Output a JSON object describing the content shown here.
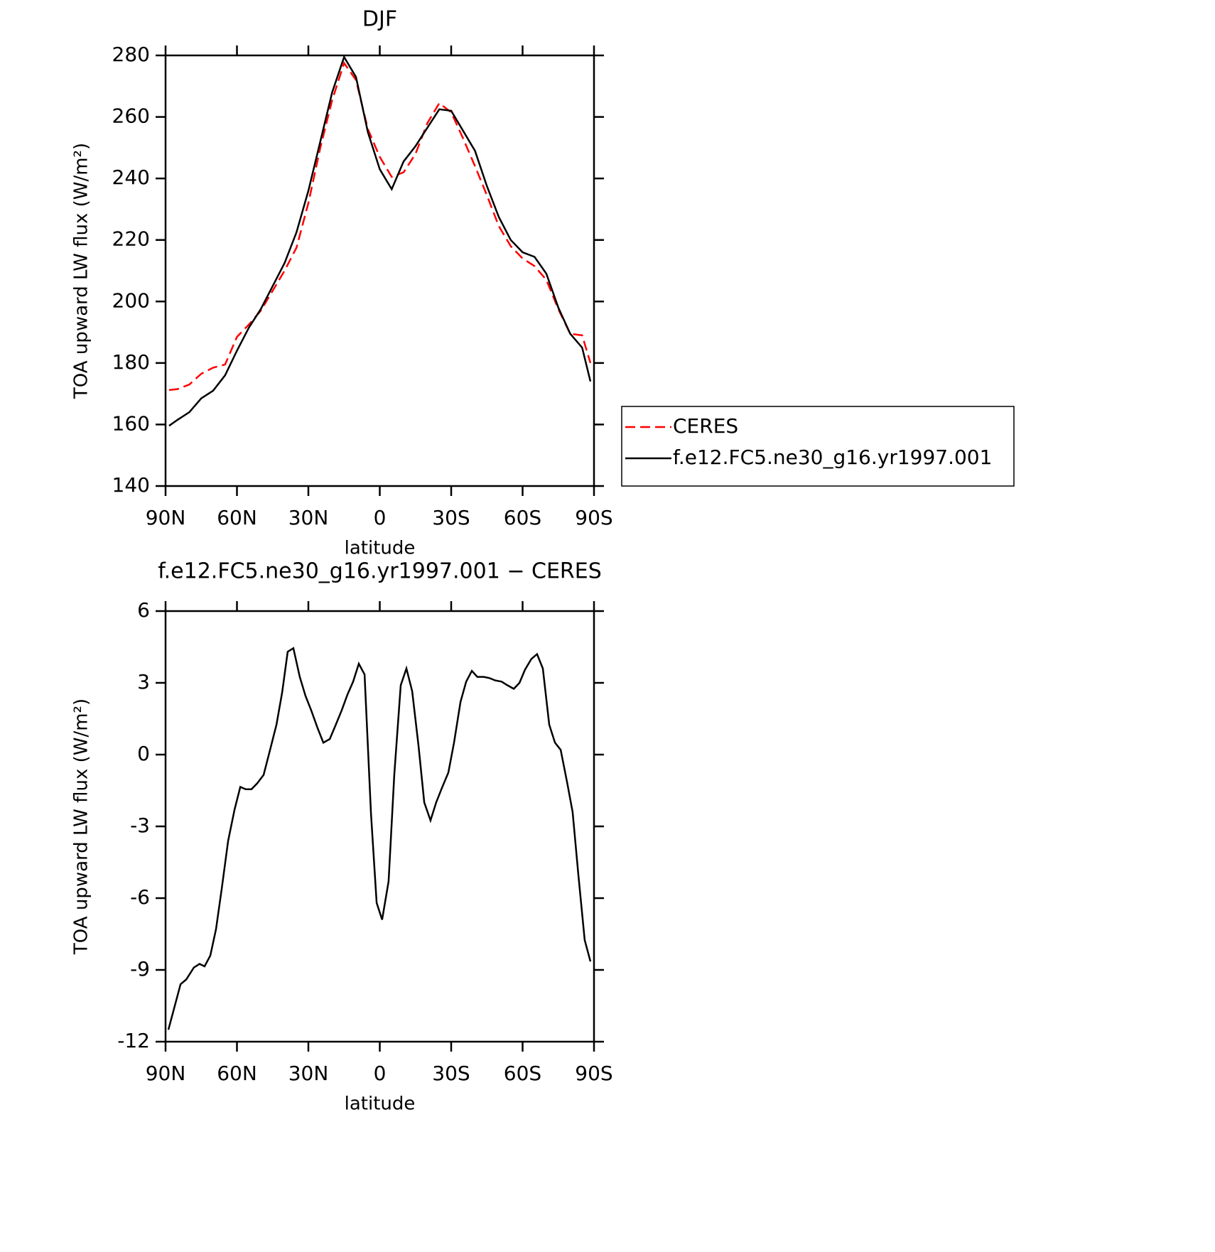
{
  "chart_data": [
    {
      "type": "line",
      "title": "DJF",
      "x_label": "latitude",
      "y_label": "TOA upward LW flux (W/m²)",
      "x": [
        88.5,
        85,
        80,
        75,
        70,
        65,
        60,
        55,
        50,
        45,
        40,
        35,
        30,
        25,
        20,
        15,
        10,
        5,
        0,
        -5,
        -10,
        -15,
        -20,
        -25,
        -30,
        -35,
        -40,
        -45,
        -50,
        -55,
        -60,
        -65,
        -70,
        -75,
        -80,
        -85,
        -88.5
      ],
      "series": [
        {
          "name": "CERES",
          "color": "#ff0000",
          "line_style": "dashed",
          "values": [
            171.2,
            171.5,
            173,
            176.5,
            178.5,
            179.5,
            188.5,
            192.5,
            197,
            203.5,
            210,
            217.5,
            232,
            250,
            265.5,
            277.5,
            272,
            256,
            247,
            240.5,
            242,
            248,
            258,
            264.5,
            261.5,
            253,
            244,
            234.5,
            224.5,
            218,
            214,
            211.5,
            207,
            197.5,
            189.5,
            189,
            180
          ]
        },
        {
          "name": "f.e12.FC5.ne30_g16.yr1997.001",
          "color": "#000000",
          "line_style": "solid",
          "values": [
            159.6,
            161.5,
            164,
            168.5,
            171,
            176,
            184,
            191.5,
            197.5,
            205,
            212.5,
            222.5,
            236,
            252,
            268,
            279.5,
            273,
            255,
            243,
            236.5,
            245.5,
            250.5,
            256.5,
            262.5,
            262,
            255.5,
            249,
            237.5,
            227.5,
            220,
            216,
            214.5,
            209,
            198,
            189.5,
            185,
            174
          ]
        }
      ],
      "xlim": [
        90,
        -90
      ],
      "xticks": [
        {
          "value": 90,
          "label": "90N"
        },
        {
          "value": 60,
          "label": "60N"
        },
        {
          "value": 30,
          "label": "30N"
        },
        0,
        {
          "value": -30,
          "label": "30S"
        },
        {
          "value": -60,
          "label": "60S"
        },
        {
          "value": -90,
          "label": "90S"
        }
      ],
      "ylim": [
        140,
        280
      ],
      "yticks": [
        140,
        160,
        180,
        200,
        220,
        240,
        260,
        280
      ],
      "legend": "right"
    },
    {
      "type": "line",
      "title": "f.e12.FC5.ne30_g16.yr1997.001 − CERES",
      "x_label": "latitude",
      "y_label": "TOA upward LW flux (W/m²)",
      "x": [
        88.8,
        83.7,
        81.3,
        78.1,
        75.7,
        73.6,
        71.2,
        68.8,
        66.4,
        63.7,
        61.0,
        58.6,
        56.3,
        53.9,
        51.5,
        48.8,
        46.1,
        43.4,
        41.0,
        38.7,
        36.3,
        33.6,
        31.2,
        28.8,
        26.1,
        23.7,
        21.0,
        18.7,
        16.0,
        13.6,
        11.2,
        8.8,
        6.4,
        3.7,
        1.3,
        -1.0,
        -3.7,
        -6.1,
        -8.8,
        -11.2,
        -13.6,
        -16.3,
        -18.7,
        -21.3,
        -23.7,
        -26.1,
        -28.8,
        -31.2,
        -33.9,
        -36.3,
        -38.7,
        -41.0,
        -43.7,
        -46.1,
        -48.5,
        -51.2,
        -53.6,
        -56.3,
        -58.7,
        -61.0,
        -63.7,
        -66.1,
        -68.5,
        -71.2,
        -73.6,
        -76.0,
        -78.7,
        -81.0,
        -83.4,
        -86.1,
        -88.5
      ],
      "color": "#000000",
      "values": [
        -11.5,
        -9.6,
        -9.4,
        -8.9,
        -8.75,
        -8.85,
        -8.4,
        -7.3,
        -5.6,
        -3.6,
        -2.3,
        -1.35,
        -1.45,
        -1.45,
        -1.2,
        -0.85,
        0.2,
        1.25,
        2.6,
        4.3,
        4.45,
        3.25,
        2.45,
        1.85,
        1.1,
        0.5,
        0.65,
        1.2,
        1.85,
        2.5,
        3.05,
        3.8,
        3.35,
        -2.45,
        -6.2,
        -6.9,
        -5.3,
        -0.85,
        2.9,
        3.6,
        2.65,
        0.35,
        -2,
        -2.75,
        -2,
        -1.4,
        -0.75,
        0.5,
        2.2,
        3.05,
        3.5,
        3.25,
        3.25,
        3.2,
        3.1,
        3.05,
        2.9,
        2.75,
        3,
        3.55,
        4,
        4.2,
        3.6,
        1.25,
        0.5,
        0.2,
        -1.15,
        -2.4,
        -5,
        -7.75,
        -8.65
      ],
      "xlim": [
        90,
        -90
      ],
      "xticks": [
        {
          "value": 90,
          "label": "90N"
        },
        {
          "value": 60,
          "label": "60N"
        },
        {
          "value": 30,
          "label": "30N"
        },
        0,
        {
          "value": -30,
          "label": "30S"
        },
        {
          "value": -60,
          "label": "60S"
        },
        {
          "value": -90,
          "label": "90S"
        }
      ],
      "ylim": [
        -12,
        6
      ],
      "yticks": [
        -12,
        -9,
        -6,
        -3,
        0,
        3,
        6
      ]
    }
  ]
}
